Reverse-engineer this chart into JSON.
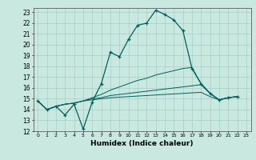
{
  "title": "",
  "xlabel": "Humidex (Indice chaleur)",
  "xlim": [
    -0.5,
    23.5
  ],
  "ylim": [
    12,
    23.4
  ],
  "yticks": [
    12,
    13,
    14,
    15,
    16,
    17,
    18,
    19,
    20,
    21,
    22,
    23
  ],
  "xticks": [
    0,
    1,
    2,
    3,
    4,
    5,
    6,
    7,
    8,
    9,
    10,
    11,
    12,
    13,
    14,
    15,
    16,
    17,
    18,
    19,
    20,
    21,
    22,
    23
  ],
  "background_color": "#c8e8e0",
  "grid_color": "#a0c8c0",
  "line_color": "#006060",
  "line1_x": [
    0,
    1,
    2,
    3,
    4,
    5,
    6,
    7,
    8,
    9,
    10,
    11,
    12,
    13,
    14,
    15,
    16,
    17,
    18,
    19,
    20,
    21,
    22
  ],
  "line1_y": [
    14.8,
    14.0,
    14.3,
    13.5,
    14.5,
    12.2,
    14.7,
    16.4,
    19.3,
    18.9,
    20.5,
    21.8,
    22.0,
    23.2,
    22.8,
    22.3,
    21.3,
    17.8,
    16.4,
    15.5,
    14.9,
    15.1,
    15.2
  ],
  "line2_x": [
    0,
    1,
    2,
    3,
    4,
    5,
    6,
    7,
    8,
    9,
    10,
    11,
    12,
    13,
    14,
    15,
    16,
    17,
    18,
    19,
    20,
    21,
    22
  ],
  "line2_y": [
    14.8,
    14.0,
    14.3,
    14.5,
    14.6,
    14.8,
    15.1,
    15.4,
    15.8,
    16.1,
    16.4,
    16.7,
    16.9,
    17.2,
    17.4,
    17.6,
    17.8,
    17.9,
    16.4,
    15.5,
    14.9,
    15.1,
    15.2
  ],
  "line3_x": [
    0,
    1,
    2,
    3,
    4,
    5,
    6,
    7,
    8,
    9,
    10,
    11,
    12,
    13,
    14,
    15,
    16,
    17,
    18,
    19,
    20,
    21,
    22
  ],
  "line3_y": [
    14.8,
    14.0,
    14.3,
    14.5,
    14.6,
    14.8,
    15.0,
    15.1,
    15.3,
    15.4,
    15.5,
    15.6,
    15.7,
    15.8,
    15.9,
    16.0,
    16.1,
    16.2,
    16.3,
    15.5,
    14.9,
    15.1,
    15.2
  ],
  "line4_x": [
    0,
    1,
    2,
    3,
    4,
    5,
    6,
    7,
    8,
    9,
    10,
    11,
    12,
    13,
    14,
    15,
    16,
    17,
    18,
    19,
    20,
    21,
    22
  ],
  "line4_y": [
    14.8,
    14.0,
    14.3,
    14.5,
    14.6,
    14.8,
    14.9,
    15.0,
    15.1,
    15.15,
    15.2,
    15.25,
    15.3,
    15.35,
    15.4,
    15.45,
    15.5,
    15.55,
    15.6,
    15.2,
    14.9,
    15.1,
    15.2
  ]
}
